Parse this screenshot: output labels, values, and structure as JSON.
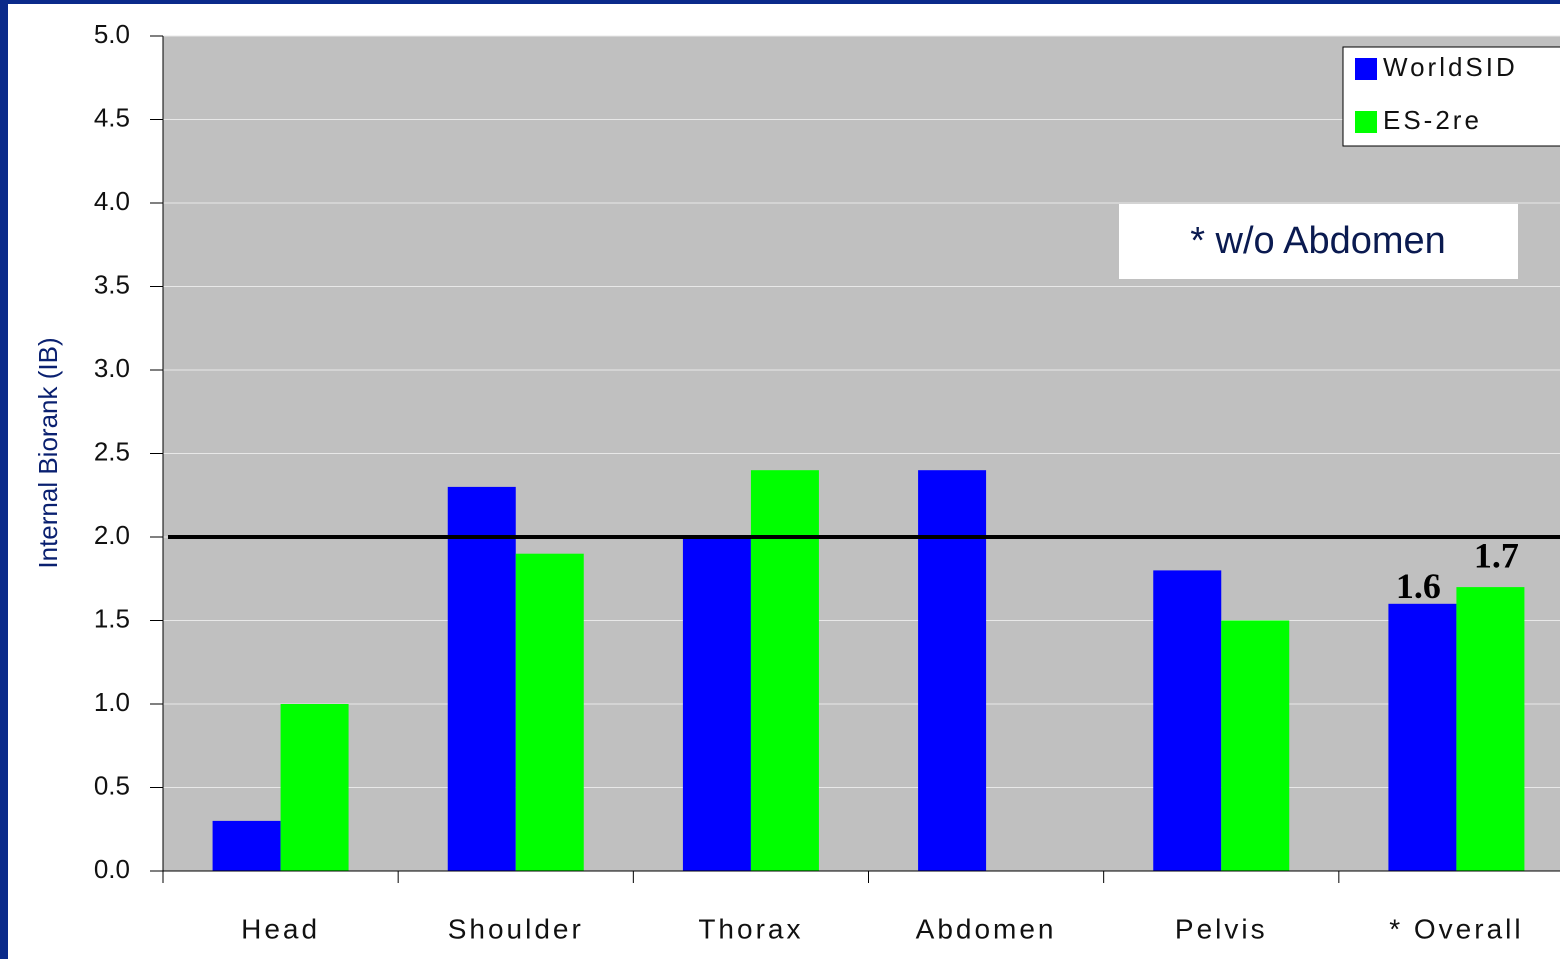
{
  "chart_data": {
    "type": "bar",
    "y_axis_label": "Internal Biorank (IB)",
    "categories": [
      "Head",
      "Shoulder",
      "Thorax",
      "Abdomen",
      "Pelvis",
      "* Overall"
    ],
    "series": [
      {
        "name": "WorldSID",
        "color": "#0000ff",
        "values": [
          0.3,
          2.3,
          2.0,
          2.4,
          1.8,
          1.6
        ],
        "value_labels": [
          null,
          null,
          null,
          null,
          null,
          "1.6"
        ]
      },
      {
        "name": "ES-2re",
        "color": "#00ff00",
        "values": [
          1.0,
          1.9,
          2.4,
          null,
          1.5,
          1.7
        ],
        "value_labels": [
          null,
          null,
          null,
          null,
          null,
          "1.7"
        ]
      }
    ],
    "ylim": [
      0,
      5
    ],
    "yticks": [
      {
        "value": 0,
        "label": "0.0"
      },
      0.5,
      {
        "value": 1,
        "label": "1.0"
      },
      1.5,
      {
        "value": 2,
        "label": "2.0"
      },
      2.5,
      {
        "value": 3,
        "label": "3.0"
      },
      3.5,
      {
        "value": 4,
        "label": "4.0"
      },
      4.5,
      {
        "value": 5,
        "label": "5.0"
      }
    ],
    "grid": true,
    "reference_line": 2,
    "annotation": "* w/o Abdomen",
    "legend": "top-right"
  }
}
